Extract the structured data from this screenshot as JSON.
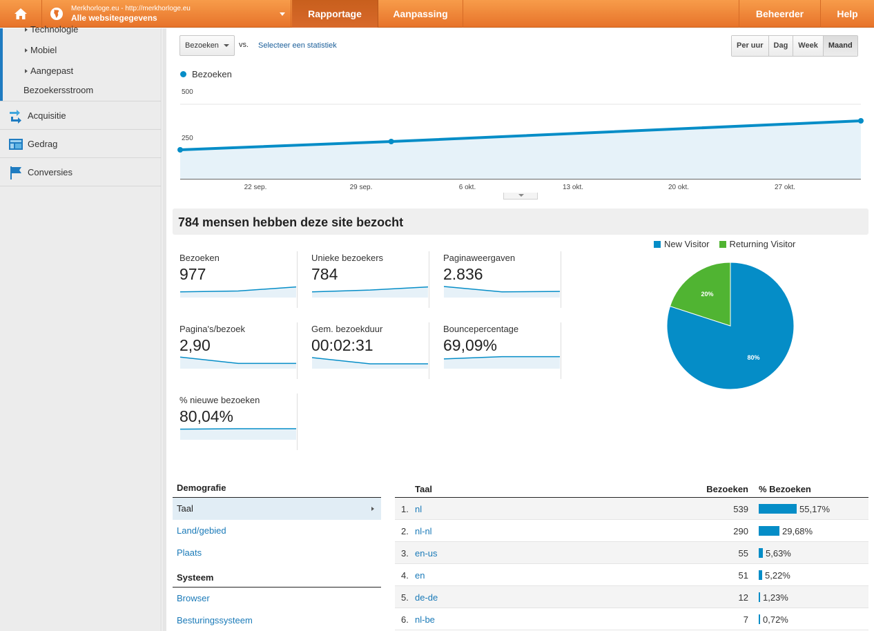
{
  "topbar": {
    "account_line1": "Merkhorloge.eu - http://merkhorloge.eu",
    "account_line2": "Alle websitegegevens",
    "tabs": {
      "rapportage": "Rapportage",
      "aanpassing": "Aanpassing",
      "beheerder": "Beheerder",
      "help": "Help"
    }
  },
  "sidebar": {
    "sub_items": [
      "Technologie",
      "Mobiel",
      "Aangepast"
    ],
    "flow": "Bezoekersstroom",
    "sections": [
      "Acquisitie",
      "Gedrag",
      "Conversies"
    ]
  },
  "controls": {
    "metric": "Bezoeken",
    "vs": "vs.",
    "select_stat": "Selecteer een statistiek",
    "periods": [
      "Per uur",
      "Dag",
      "Week",
      "Maand"
    ],
    "active_period": "Maand"
  },
  "chart_data": {
    "type": "line",
    "series": [
      {
        "name": "Bezoeken",
        "color": "#058dc7",
        "points": [
          [
            0,
            290
          ],
          [
            0.31,
            330
          ],
          [
            1.0,
            430
          ]
        ]
      }
    ],
    "y_ticks": [
      "500",
      "250"
    ],
    "x_ticks": [
      "22 sep.",
      "29 sep.",
      "6 okt.",
      "13 okt.",
      "20 okt.",
      "27 okt."
    ]
  },
  "summary": {
    "title": "784 mensen hebben deze site bezocht",
    "tiles": [
      {
        "name": "Bezoeken",
        "value": "977",
        "spark": [
          0.25,
          0.35,
          0.8
        ]
      },
      {
        "name": "Unieke bezoekers",
        "value": "784",
        "spark": [
          0.25,
          0.45,
          0.8
        ]
      },
      {
        "name": "Paginaweergaven",
        "value": "2.836",
        "spark": [
          0.85,
          0.25,
          0.3
        ]
      },
      {
        "name": "Pagina's/bezoek",
        "value": "2,90",
        "spark": [
          0.9,
          0.2,
          0.2
        ]
      },
      {
        "name": "Gem. bezoekduur",
        "value": "00:02:31",
        "spark": [
          0.85,
          0.15,
          0.15
        ]
      },
      {
        "name": "Bouncepercentage",
        "value": "69,09%",
        "spark": [
          0.7,
          0.95,
          0.95
        ]
      },
      {
        "name": "% nieuwe bezoeken",
        "value": "80,04%",
        "spark": [
          0.8,
          0.85,
          0.85
        ]
      }
    ]
  },
  "pie": {
    "legend": [
      {
        "name": "New Visitor",
        "color": "#058dc7"
      },
      {
        "name": "Returning Visitor",
        "color": "#50b432"
      }
    ],
    "values": [
      80,
      20
    ],
    "labels": [
      "80%",
      "20%"
    ]
  },
  "demografie": {
    "title": "Demografie",
    "items": [
      "Taal",
      "Land/gebied",
      "Plaats"
    ],
    "systeem_title": "Systeem",
    "systeem_items": [
      "Browser",
      "Besturingssysteem"
    ]
  },
  "lang_table": {
    "headers": [
      "Taal",
      "Bezoeken",
      "% Bezoeken"
    ],
    "rows": [
      {
        "n": "1.",
        "k": "nl",
        "v": "539",
        "pct": "55,17%",
        "frac": 0.5517
      },
      {
        "n": "2.",
        "k": "nl-nl",
        "v": "290",
        "pct": "29,68%",
        "frac": 0.2968
      },
      {
        "n": "3.",
        "k": "en-us",
        "v": "55",
        "pct": "5,63%",
        "frac": 0.0563
      },
      {
        "n": "4.",
        "k": "en",
        "v": "51",
        "pct": "5,22%",
        "frac": 0.0522
      },
      {
        "n": "5.",
        "k": "de-de",
        "v": "12",
        "pct": "1,23%",
        "frac": 0.0123
      },
      {
        "n": "6.",
        "k": "nl-be",
        "v": "7",
        "pct": "0,72%",
        "frac": 0.0072
      }
    ]
  }
}
